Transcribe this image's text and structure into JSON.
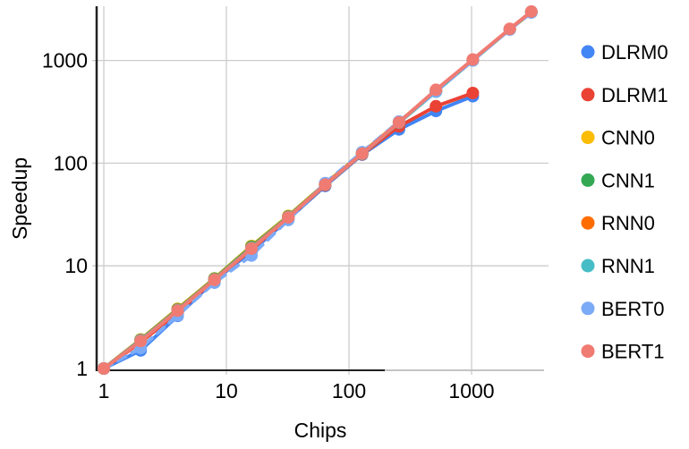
{
  "chart_data": {
    "type": "line",
    "title": "",
    "xlabel": "Chips",
    "ylabel": "Speedup",
    "x_scale": "log",
    "y_scale": "log",
    "xlim": [
      1,
      3900
    ],
    "ylim": [
      1,
      3400
    ],
    "x_ticks": [
      1,
      10,
      100,
      1000
    ],
    "x_tick_labels": [
      "1",
      "10",
      "100",
      "1000"
    ],
    "y_ticks": [
      1,
      10,
      100,
      1000
    ],
    "y_tick_labels": [
      "1",
      "10",
      "100",
      "1000"
    ],
    "grid": true,
    "legend_position": "right",
    "x": [
      1,
      2,
      4,
      8,
      16,
      32,
      64,
      128,
      256,
      512,
      1024,
      2048,
      3072
    ],
    "series": [
      {
        "name": "DLRM0",
        "color": "#4285F4",
        "dash": "solid",
        "values": [
          1,
          1.5,
          3.25,
          7.2,
          13.8,
          28.5,
          60,
          121,
          213,
          322,
          448
        ]
      },
      {
        "name": "DLRM1",
        "color": "#EA4335",
        "dash": "solid",
        "values": [
          1,
          1.8,
          3.5,
          7.3,
          14.4,
          29.3,
          61,
          122,
          228,
          358,
          482
        ]
      },
      {
        "name": "CNN0",
        "color": "#FBBC04",
        "dash": "solid",
        "values": [
          1,
          1.92,
          3.82,
          7.55,
          15.6,
          30.6,
          63,
          126,
          252,
          508,
          1010,
          2020,
          2970
        ]
      },
      {
        "name": "CNN1",
        "color": "#34A853",
        "dash": "solid",
        "values": [
          1,
          1.91,
          3.78,
          7.5,
          15.4,
          30.3,
          62.5,
          125,
          250,
          504,
          1002,
          2006,
          2948
        ]
      },
      {
        "name": "RNN0",
        "color": "#FF6D01",
        "dash": "solid",
        "values": [
          1,
          1.9,
          3.74,
          7.42,
          15.1,
          30,
          62,
          124,
          249,
          500,
          1012,
          2022,
          2978
        ]
      },
      {
        "name": "RNN1",
        "color": "#46BDC6",
        "dash": "solid",
        "values": [
          1,
          1.88,
          3.7,
          7.36,
          14.9,
          29.8,
          61.5,
          123,
          248,
          497,
          1006,
          2014,
          2988
        ]
      },
      {
        "name": "BERT0",
        "color": "#7BAAF7",
        "dash": "dashed",
        "values": [
          1,
          1.58,
          3.3,
          6.85,
          12.6,
          28,
          64,
          128,
          254,
          500,
          1000,
          2000,
          2925
        ]
      },
      {
        "name": "BERT1",
        "color": "#F07B72",
        "dash": "solid",
        "values": [
          1,
          1.85,
          3.66,
          7.3,
          14.7,
          29.6,
          61.8,
          124,
          250,
          518,
          1022,
          2032,
          2995
        ]
      }
    ]
  },
  "style": {
    "grid_color": "#cccccc",
    "axis_color": "#212121",
    "axis_color_faded": "#c4c4c4",
    "text_color": "#000000",
    "background": "#ffffff"
  }
}
